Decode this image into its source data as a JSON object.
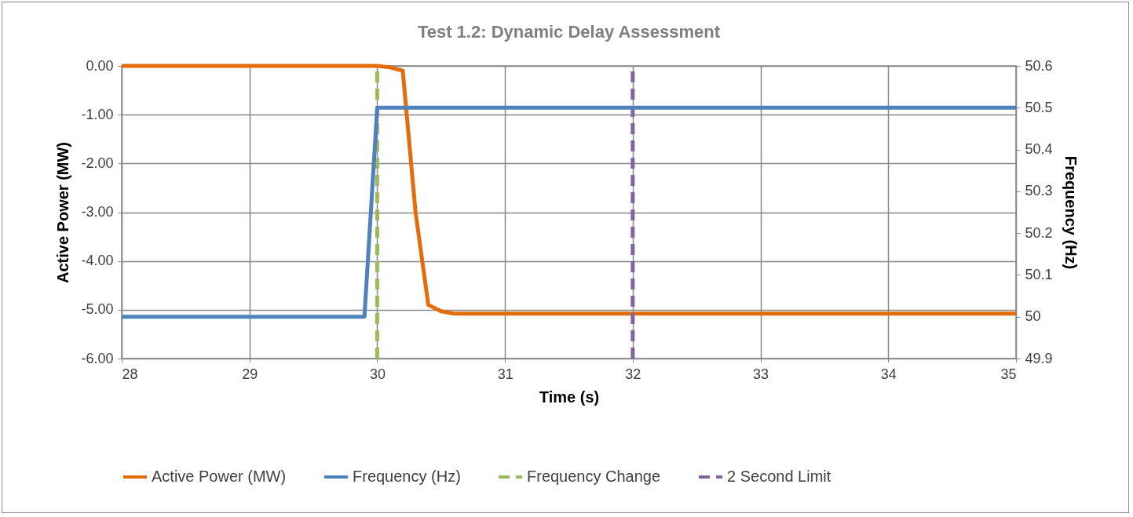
{
  "chart_data": {
    "type": "line",
    "title": "Test 1.2: Dynamic Delay Assessment",
    "xlabel": "Time (s)",
    "ylabel": "Active Power (MW)",
    "y2label": "Frequency (Hz)",
    "xlim": [
      28,
      35
    ],
    "xticks": [
      28,
      29,
      30,
      31,
      32,
      33,
      34,
      35
    ],
    "ylim": [
      -6,
      0
    ],
    "yticks": [
      {
        "value": -6,
        "label": "-6.00"
      },
      {
        "value": -5,
        "label": "-5.00"
      },
      {
        "value": -4,
        "label": "-4.00"
      },
      {
        "value": -3,
        "label": "-3.00"
      },
      {
        "value": -2,
        "label": "-2.00"
      },
      {
        "value": -1,
        "label": "-1.00"
      },
      {
        "value": 0,
        "label": "0.00"
      }
    ],
    "y2lim": [
      49.9,
      50.6
    ],
    "y2ticks": [
      49.9,
      50,
      50.1,
      50.2,
      50.3,
      50.4,
      50.5,
      50.6
    ],
    "grid": true,
    "legend": "bottom",
    "line_style": "solid",
    "marker": "none",
    "series": [
      {
        "name": "Active Power (MW)",
        "color": "#e46c0a",
        "x": [
          28,
          30,
          30.1,
          30.2,
          30.3,
          30.4,
          30.5,
          30.6,
          35
        ],
        "values": [
          0,
          0,
          -0.03,
          -0.1,
          -3.0,
          -4.9,
          -5.03,
          -5.08,
          -5.08
        ]
      },
      {
        "name": "Frequency (Hz)",
        "color": "#4f81bd",
        "axis": "y2",
        "x": [
          28,
          29.9,
          30,
          35
        ],
        "values": [
          50,
          50,
          50.5,
          50.5
        ]
      },
      {
        "name": "Frequency Change",
        "color": "#9bbb59",
        "line_style": "dashed",
        "x": [
          30,
          30
        ],
        "values": [
          -6,
          0
        ]
      },
      {
        "name": "2 Second Limit",
        "color": "#8064a2",
        "line_style": "dashed",
        "x": [
          32,
          32
        ],
        "values": [
          -6,
          0
        ]
      }
    ]
  }
}
